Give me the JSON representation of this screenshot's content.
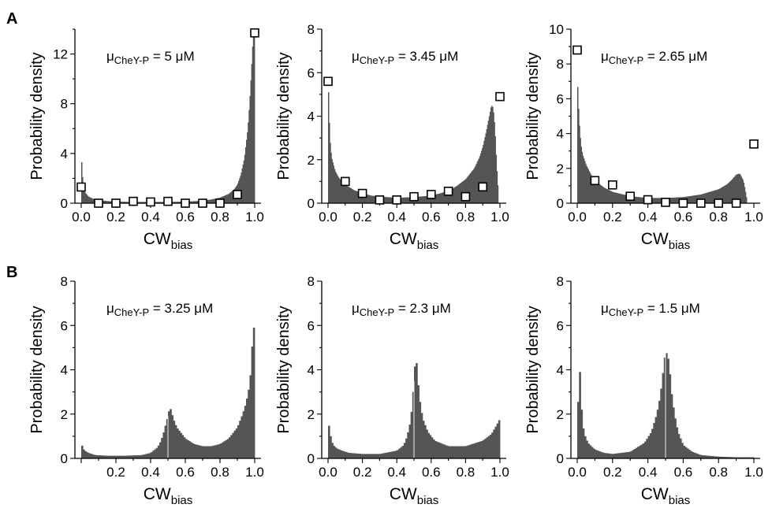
{
  "panel_labels": [
    "A",
    "B"
  ],
  "chart_data": [
    {
      "row": "A",
      "type": "area",
      "annotation": {
        "mu": "μ",
        "sub": "CheY-P",
        "rest": " = 5 μM"
      },
      "xlabel": {
        "main": "CW",
        "sub": "bias"
      },
      "ylabel": "Probability density",
      "xlim": [
        0,
        1
      ],
      "ylim": [
        0,
        14
      ],
      "xticks": [
        "0.0",
        "0.2",
        "0.4",
        "0.6",
        "0.8",
        "1.0"
      ],
      "yticks": [
        0,
        4,
        8,
        12
      ],
      "grid": false,
      "color": "#555555",
      "distribution": {
        "x": [
          0.0,
          0.01,
          0.02,
          0.04,
          0.06,
          0.08,
          0.1,
          0.15,
          0.2,
          0.3,
          0.4,
          0.5,
          0.6,
          0.7,
          0.75,
          0.8,
          0.85,
          0.88,
          0.9,
          0.92,
          0.94,
          0.96,
          0.97,
          0.98,
          0.99,
          1.0
        ],
        "y": [
          3.9,
          1.5,
          0.9,
          0.55,
          0.4,
          0.3,
          0.25,
          0.17,
          0.12,
          0.1,
          0.1,
          0.1,
          0.12,
          0.2,
          0.3,
          0.45,
          0.75,
          1.1,
          1.5,
          2.3,
          3.6,
          6.0,
          8.0,
          10.5,
          13.3,
          13.8
        ]
      },
      "markers": {
        "x": [
          0.0,
          0.1,
          0.2,
          0.3,
          0.4,
          0.5,
          0.6,
          0.7,
          0.8,
          0.9,
          1.0
        ],
        "y": [
          1.3,
          0.0,
          0.0,
          0.15,
          0.1,
          0.15,
          0.0,
          0.0,
          0.0,
          0.7,
          13.7
        ]
      }
    },
    {
      "row": "A",
      "type": "area",
      "annotation": {
        "mu": "μ",
        "sub": "CheY-P",
        "rest": " = 3.45 μM"
      },
      "xlabel": {
        "main": "CW",
        "sub": "bias"
      },
      "ylabel": "Probability density",
      "xlim": [
        0,
        1
      ],
      "ylim": [
        0,
        8
      ],
      "xticks": [
        "0.0",
        "0.2",
        "0.4",
        "0.6",
        "0.8",
        "1.0"
      ],
      "yticks": [
        0,
        2,
        4,
        6,
        8
      ],
      "grid": false,
      "color": "#555555",
      "distribution": {
        "x": [
          0.0,
          0.01,
          0.02,
          0.04,
          0.06,
          0.08,
          0.1,
          0.15,
          0.2,
          0.25,
          0.3,
          0.4,
          0.5,
          0.6,
          0.7,
          0.75,
          0.8,
          0.85,
          0.88,
          0.9,
          0.92,
          0.94,
          0.95,
          0.96,
          0.97,
          0.98,
          0.99
        ],
        "y": [
          5.8,
          3.0,
          2.1,
          1.5,
          1.2,
          1.0,
          0.85,
          0.6,
          0.45,
          0.35,
          0.3,
          0.25,
          0.28,
          0.35,
          0.55,
          0.8,
          1.1,
          1.6,
          2.1,
          2.6,
          3.3,
          4.1,
          4.5,
          4.4,
          3.5,
          1.8,
          0.5
        ]
      },
      "markers": {
        "x": [
          0.0,
          0.1,
          0.2,
          0.3,
          0.4,
          0.5,
          0.6,
          0.7,
          0.8,
          0.9,
          1.0
        ],
        "y": [
          5.6,
          1.0,
          0.45,
          0.15,
          0.15,
          0.3,
          0.4,
          0.55,
          0.3,
          0.75,
          4.9
        ]
      }
    },
    {
      "row": "A",
      "type": "area",
      "annotation": {
        "mu": "μ",
        "sub": "CheY-P",
        "rest": " = 2.65 μM"
      },
      "xlabel": {
        "main": "CW",
        "sub": "bias"
      },
      "ylabel": "Probability density",
      "xlim": [
        0,
        1
      ],
      "ylim": [
        0,
        10
      ],
      "xticks": [
        "0.0",
        "0.2",
        "0.4",
        "0.6",
        "0.8",
        "1.0"
      ],
      "yticks": [
        0,
        2,
        4,
        6,
        8,
        10
      ],
      "grid": false,
      "color": "#555555",
      "distribution": {
        "x": [
          0.0,
          0.01,
          0.02,
          0.03,
          0.05,
          0.08,
          0.1,
          0.15,
          0.2,
          0.3,
          0.4,
          0.5,
          0.6,
          0.7,
          0.8,
          0.85,
          0.88,
          0.9,
          0.92,
          0.94,
          0.95,
          0.96
        ],
        "y": [
          7.3,
          4.8,
          3.4,
          2.8,
          2.2,
          1.6,
          1.3,
          0.9,
          0.65,
          0.4,
          0.3,
          0.3,
          0.35,
          0.5,
          0.8,
          1.1,
          1.4,
          1.65,
          1.7,
          1.3,
          0.8,
          0.2
        ]
      },
      "markers": {
        "x": [
          0.0,
          0.1,
          0.2,
          0.3,
          0.4,
          0.5,
          0.6,
          0.7,
          0.8,
          0.9,
          1.0
        ],
        "y": [
          8.8,
          1.3,
          1.05,
          0.4,
          0.2,
          0.05,
          0.0,
          0.0,
          0.0,
          0.0,
          3.4
        ]
      }
    },
    {
      "row": "B",
      "type": "bar",
      "annotation": {
        "mu": "μ",
        "sub": "CheY-P",
        "rest": " = 3.25 μM"
      },
      "xlabel": {
        "main": "CW",
        "sub": "bias"
      },
      "ylabel": "Probability density",
      "xlim": [
        0,
        1
      ],
      "ylim": [
        0,
        8
      ],
      "xticks": [
        "0.2",
        "0.4",
        "0.6",
        "0.8",
        "1.0"
      ],
      "yticks": [
        0,
        2,
        4,
        6,
        8
      ],
      "grid": false,
      "color": "#555555",
      "bins": 100,
      "distribution": {
        "x": [
          0.0,
          0.01,
          0.02,
          0.04,
          0.08,
          0.15,
          0.25,
          0.35,
          0.4,
          0.44,
          0.46,
          0.48,
          0.49,
          0.5,
          0.51,
          0.52,
          0.53,
          0.55,
          0.6,
          0.65,
          0.7,
          0.75,
          0.8,
          0.85,
          0.9,
          0.93,
          0.95,
          0.97,
          0.98,
          0.99,
          1.0
        ],
        "y": [
          0.7,
          0.45,
          0.35,
          0.25,
          0.15,
          0.12,
          0.12,
          0.15,
          0.25,
          0.5,
          0.8,
          1.3,
          1.65,
          1.9,
          2.35,
          2.1,
          1.8,
          1.4,
          0.9,
          0.65,
          0.55,
          0.55,
          0.65,
          0.9,
          1.4,
          2.0,
          2.5,
          3.3,
          4.2,
          5.9,
          5.9
        ]
      },
      "gap_at": 0.5
    },
    {
      "row": "B",
      "type": "bar",
      "annotation": {
        "mu": "μ",
        "sub": "CheY-P",
        "rest": " = 2.3 μM"
      },
      "xlabel": {
        "main": "CW",
        "sub": "bias"
      },
      "ylabel": "Probability density",
      "xlim": [
        0,
        1
      ],
      "ylim": [
        0,
        8
      ],
      "xticks": [
        "0.0",
        "0.2",
        "0.4",
        "0.6",
        "0.8",
        "1.0"
      ],
      "yticks": [
        0,
        2,
        4,
        6,
        8
      ],
      "grid": false,
      "color": "#555555",
      "bins": 100,
      "distribution": {
        "x": [
          0.0,
          0.01,
          0.02,
          0.03,
          0.05,
          0.08,
          0.12,
          0.2,
          0.3,
          0.4,
          0.44,
          0.46,
          0.48,
          0.49,
          0.5,
          0.51,
          0.52,
          0.53,
          0.55,
          0.58,
          0.62,
          0.7,
          0.8,
          0.9,
          0.95,
          0.98,
          1.0
        ],
        "y": [
          1.75,
          1.2,
          0.8,
          0.6,
          0.45,
          0.35,
          0.25,
          0.2,
          0.2,
          0.35,
          0.6,
          1.0,
          1.7,
          2.5,
          3.5,
          4.8,
          3.8,
          2.8,
          1.8,
          1.2,
          0.8,
          0.55,
          0.55,
          0.8,
          1.1,
          1.5,
          1.8
        ]
      },
      "gap_at": 0.5
    },
    {
      "row": "B",
      "type": "bar",
      "annotation": {
        "mu": "μ",
        "sub": "CheY-P",
        "rest": " = 1.5 μM"
      },
      "xlabel": {
        "main": "CW",
        "sub": "bias"
      },
      "ylabel": "Probability density",
      "xlim": [
        0,
        1
      ],
      "ylim": [
        0,
        8
      ],
      "xticks": [
        "0.0",
        "0.2",
        "0.4",
        "0.6",
        "0.8",
        "1.0"
      ],
      "yticks": [
        0,
        2,
        4,
        6,
        8
      ],
      "grid": false,
      "color": "#555555",
      "bins": 100,
      "distribution": {
        "x": [
          0.0,
          0.01,
          0.02,
          0.03,
          0.04,
          0.06,
          0.1,
          0.15,
          0.2,
          0.3,
          0.38,
          0.42,
          0.45,
          0.47,
          0.48,
          0.49,
          0.5,
          0.51,
          0.52,
          0.53,
          0.55,
          0.57,
          0.6,
          0.65,
          0.7,
          0.8,
          0.9,
          1.0
        ],
        "y": [
          0.1,
          5.0,
          2.8,
          1.6,
          1.1,
          0.7,
          0.4,
          0.25,
          0.2,
          0.3,
          0.7,
          1.2,
          2.0,
          2.8,
          3.5,
          4.2,
          4.9,
          4.6,
          4.4,
          3.2,
          2.0,
          1.2,
          0.6,
          0.3,
          0.15,
          0.08,
          0.05,
          0.05
        ]
      },
      "gap_at": 0.5
    }
  ]
}
